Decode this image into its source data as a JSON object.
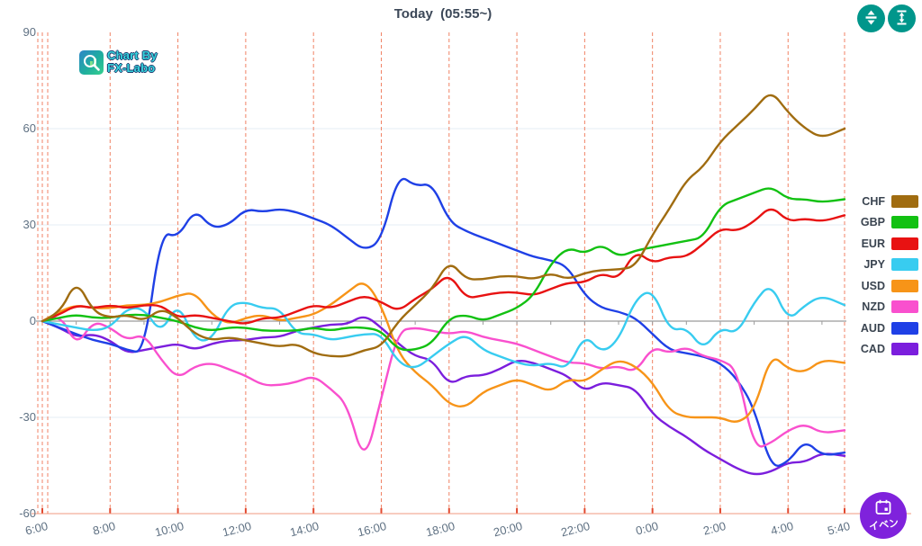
{
  "header": {
    "title": "Today  (05:55~)"
  },
  "logo": {
    "line1": "Chart By",
    "line2": "FX-Labo"
  },
  "toolbar": {
    "color": "#00968B",
    "buttons": [
      {
        "name": "fit-vertical-range-button",
        "icon": "arrows-split-vertical-icon"
      },
      {
        "name": "scale-vertical-range-button",
        "icon": "vertical-height-icon"
      }
    ]
  },
  "event_button": {
    "label": "イベン",
    "color": "#7F22DC",
    "icon": "calendar-icon"
  },
  "axis_colors": {
    "dashed_vertical": "#F08264",
    "bottom_axis": "#F5BBAB",
    "bottom_tick": "#E2492F",
    "zero_line": "#9B9B9B",
    "faint_grid": "#E4EDF4",
    "label_text": "#5F7183"
  },
  "chart_data": {
    "type": "line",
    "title": "Today (05:55~)",
    "xlabel": "",
    "ylabel": "",
    "ylim": [
      -60,
      90
    ],
    "y_ticks": [
      90,
      60,
      30,
      0,
      -30,
      -60
    ],
    "x_axis_ticks": [
      "6:00",
      "8:00",
      "10:00",
      "12:00",
      "14:00",
      "16:00",
      "18:00",
      "20:00",
      "22:00",
      "0:00",
      "2:00",
      "4:00",
      "5:40"
    ],
    "grid": "horizontal-faint, vertical-red-dashed-2h",
    "legend_position": "right",
    "x": [
      "6:00",
      "6:30",
      "7:00",
      "7:30",
      "8:00",
      "8:30",
      "9:00",
      "9:30",
      "10:00",
      "10:30",
      "11:00",
      "11:30",
      "12:00",
      "12:30",
      "13:00",
      "13:30",
      "14:00",
      "14:30",
      "15:00",
      "15:30",
      "16:00",
      "16:30",
      "17:00",
      "17:30",
      "18:00",
      "18:30",
      "19:00",
      "19:30",
      "20:00",
      "20:30",
      "21:00",
      "21:30",
      "22:00",
      "22:30",
      "23:00",
      "23:30",
      "0:00",
      "0:30",
      "1:00",
      "1:30",
      "2:00",
      "2:30",
      "3:00",
      "3:30",
      "4:00",
      "4:30",
      "5:00",
      "5:40"
    ],
    "series": [
      {
        "name": "CHF",
        "color": "#A06C10",
        "values": [
          0,
          2,
          13,
          3,
          1,
          2,
          0,
          4,
          1,
          -4,
          -6,
          -5,
          -6,
          -7,
          -8,
          -7,
          -10,
          -11,
          -11,
          -9,
          -8,
          0,
          5,
          10,
          19,
          13,
          13,
          14,
          14,
          13,
          15,
          13,
          15,
          16,
          16,
          17,
          27,
          35,
          44,
          48,
          56,
          61,
          66,
          72,
          65,
          60,
          57,
          60
        ]
      },
      {
        "name": "GBP",
        "color": "#12C112",
        "values": [
          0,
          1,
          2,
          1,
          1,
          2,
          2,
          1,
          0,
          -2,
          -3,
          -2,
          -2,
          -3,
          -3,
          -3,
          -2,
          -3,
          -2,
          -2,
          -3,
          -9,
          -9,
          -7,
          1,
          2,
          0,
          2,
          4,
          8,
          18,
          23,
          21,
          24,
          20,
          22,
          23,
          24,
          25,
          26,
          36,
          38,
          40,
          42,
          38,
          38,
          37,
          38
        ]
      },
      {
        "name": "EUR",
        "color": "#E81212",
        "values": [
          0,
          2,
          5,
          4,
          5,
          4,
          5,
          5,
          1,
          2,
          1,
          0,
          -1,
          1,
          1,
          3,
          5,
          4,
          6,
          8,
          6,
          3,
          7,
          10,
          15,
          7,
          8,
          9,
          9,
          8,
          10,
          12,
          12,
          15,
          13,
          22,
          18,
          20,
          20,
          24,
          29,
          28,
          31,
          36,
          31,
          32,
          31,
          33
        ]
      },
      {
        "name": "JPY",
        "color": "#38CCF0",
        "values": [
          0,
          -1,
          -2,
          -3,
          -2,
          4,
          4,
          -4,
          6,
          -6,
          -6,
          5,
          6,
          4,
          4,
          -4,
          -4,
          -6,
          -5,
          -4,
          -4,
          -13,
          -15,
          -11,
          -7,
          -4,
          -9,
          -11,
          -13,
          -14,
          -13,
          -15,
          -4,
          -10,
          -6,
          7,
          10,
          -3,
          -2,
          -9,
          -2,
          -4,
          6,
          12,
          0,
          5,
          8,
          5
        ]
      },
      {
        "name": "USD",
        "color": "#F79418",
        "values": [
          0,
          3,
          5,
          4,
          4,
          5,
          5,
          6,
          8,
          9,
          2,
          -1,
          1,
          2,
          0,
          1,
          2,
          5,
          9,
          13,
          5,
          -10,
          -16,
          -20,
          -26,
          -27,
          -22,
          -20,
          -18,
          -20,
          -22,
          -18,
          -19,
          -15,
          -12,
          -14,
          -19,
          -28,
          -30,
          -30,
          -30,
          -32,
          -28,
          -10,
          -15,
          -16,
          -12,
          -13
        ]
      },
      {
        "name": "NZD",
        "color": "#F950CE",
        "values": [
          0,
          3,
          -8,
          0,
          -2,
          -6,
          -4,
          -12,
          -18,
          -14,
          -13,
          -15,
          -17,
          -20,
          -20,
          -19,
          -17,
          -21,
          -26,
          -45,
          -24,
          -3,
          -2,
          -3,
          -4,
          -3,
          -5,
          -6,
          -7,
          -9,
          -11,
          -13,
          -13,
          -15,
          -14,
          -16,
          -8,
          -10,
          -8,
          -11,
          -12,
          -15,
          -40,
          -38,
          -34,
          -32,
          -35,
          -34
        ]
      },
      {
        "name": "AUD",
        "color": "#1F40E6",
        "values": [
          0,
          -2,
          -4,
          -6,
          -7,
          -9,
          -10,
          28,
          26,
          35,
          29,
          30,
          35,
          34,
          35,
          34,
          32,
          30,
          26,
          22,
          25,
          46,
          42,
          43,
          31,
          28,
          26,
          24,
          22,
          20,
          19,
          17,
          8,
          4,
          3,
          1,
          -4,
          -9,
          -10,
          -11,
          -13,
          -18,
          -27,
          -46,
          -44,
          -37,
          -42,
          -41
        ]
      },
      {
        "name": "CAD",
        "color": "#7B1EDD",
        "values": [
          0,
          -2,
          -5,
          -4,
          -6,
          -10,
          -9,
          -8,
          -7,
          -9,
          -7,
          -6,
          -6,
          -5,
          -5,
          -3,
          -2,
          -1,
          -1,
          2,
          -2,
          -7,
          -11,
          -12,
          -20,
          -17,
          -17,
          -15,
          -12,
          -13,
          -15,
          -17,
          -22,
          -19,
          -20,
          -21,
          -29,
          -33,
          -36,
          -40,
          -43,
          -46,
          -48,
          -47,
          -44,
          -44,
          -41,
          -42
        ]
      }
    ]
  }
}
